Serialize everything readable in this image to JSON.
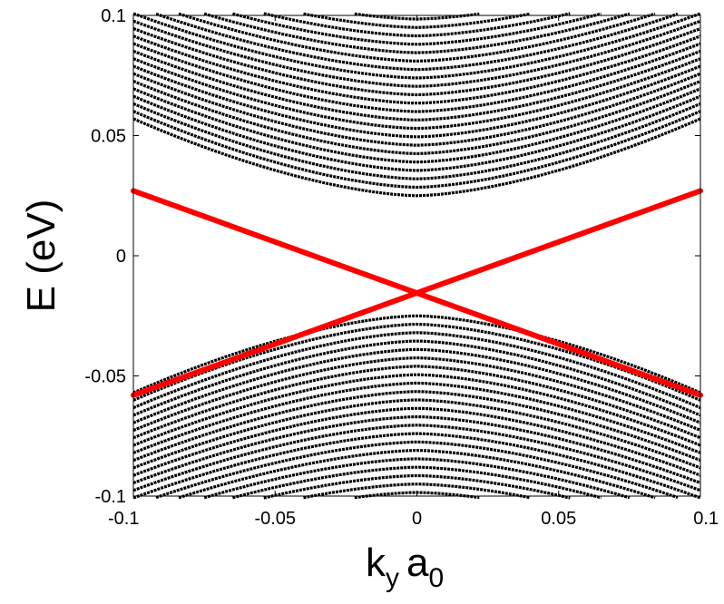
{
  "chart_data": {
    "type": "line",
    "title": "",
    "xlabel": {
      "main": "k",
      "main_sub": "y",
      "second": "a",
      "second_sub": "0"
    },
    "ylabel": "E (eV)",
    "xlim": [
      -0.1,
      0.1
    ],
    "ylim": [
      -0.1,
      0.1
    ],
    "xticks": [
      "-0.1",
      "-0.05",
      "0",
      "0.05",
      "0.1"
    ],
    "yticks": [
      "-0.1",
      "-0.05",
      "0",
      "0.05",
      "0.1"
    ],
    "grid": false,
    "colors": {
      "bulk_bands": "#000000",
      "edge_states": "#ff0000"
    },
    "conduction_band_minima_eV": [
      0.025,
      0.0285,
      0.032,
      0.0355,
      0.039,
      0.0425,
      0.046,
      0.0495,
      0.053,
      0.0565,
      0.06,
      0.0635,
      0.067,
      0.0705,
      0.074,
      0.0775,
      0.081,
      0.0845,
      0.088,
      0.0915,
      0.095,
      0.0985
    ],
    "valence_band_maxima_eV": [
      -0.025,
      -0.0285,
      -0.032,
      -0.0355,
      -0.039,
      -0.0425,
      -0.046,
      -0.0495,
      -0.053,
      -0.0565,
      -0.06,
      -0.0635,
      -0.067,
      -0.0705,
      -0.074,
      -0.0775,
      -0.081,
      -0.0845,
      -0.088,
      -0.0915,
      -0.095,
      -0.0985
    ],
    "band_width_at_edge_eV": 0.032,
    "edge_states": [
      {
        "x": [
          -0.1,
          0.1
        ],
        "y": [
          0.027,
          -0.058
        ]
      },
      {
        "x": [
          -0.1,
          0.1
        ],
        "y": [
          -0.058,
          0.027
        ]
      }
    ]
  }
}
